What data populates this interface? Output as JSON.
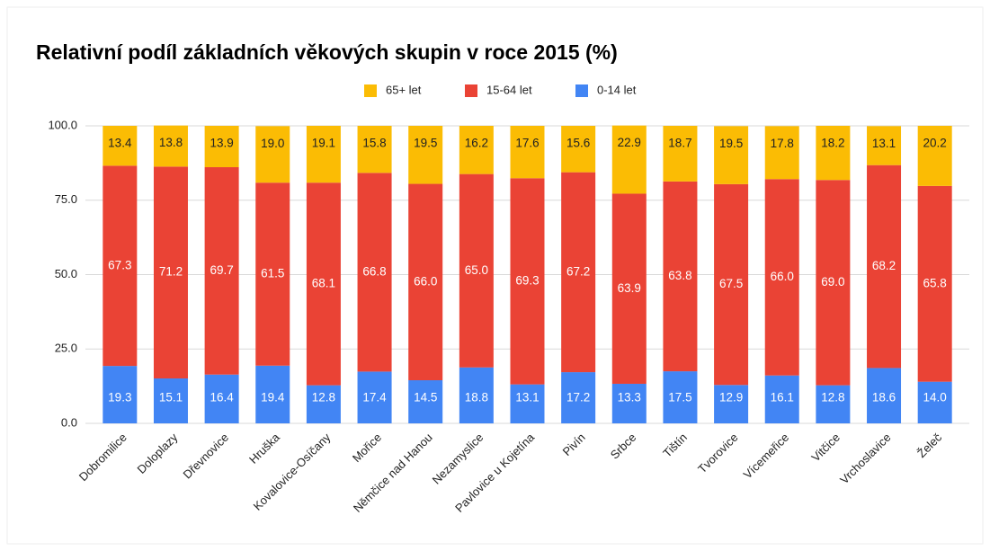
{
  "chart_data": {
    "type": "stacked_bar",
    "title": "Relativní podíl základních věkových skupin v roce 2015 (%)",
    "categories": [
      "Dobromilice",
      "Doloplazy",
      "Dřevnovice",
      "Hruška",
      "Kovalovice-Osíčany",
      "Mořice",
      "Němčice nad Hanou",
      "Nezamyslice",
      "Pavlovice u Kojetína",
      "Pivín",
      "Srbce",
      "Tištín",
      "Tvorovice",
      "Vícemeřice",
      "Vitčice",
      "Vrchoslavice",
      "Želeč"
    ],
    "series": [
      {
        "name": "0-14 let",
        "color": "#4285f4",
        "values": [
          19.3,
          15.1,
          16.4,
          19.4,
          12.8,
          17.4,
          14.5,
          18.8,
          13.1,
          17.2,
          13.3,
          17.5,
          12.9,
          16.1,
          12.8,
          18.6,
          14.0
        ],
        "value_labels": [
          "19.3",
          "15.1",
          "16.4",
          "19.4",
          "12.8",
          "17.4",
          "14.5",
          "18.8",
          "13.1",
          "17.2",
          "13.3",
          "17.5",
          "12.9",
          "16.1",
          "12.8",
          "18.6",
          "14.0"
        ]
      },
      {
        "name": "15-64 let",
        "color": "#ea4335",
        "values": [
          67.3,
          71.2,
          69.7,
          61.5,
          68.1,
          66.8,
          66.0,
          65.0,
          69.3,
          67.2,
          63.9,
          63.8,
          67.5,
          66.0,
          69.0,
          68.2,
          65.8
        ],
        "value_labels": [
          "67.3",
          "71.2",
          "69.7",
          "61.5",
          "68.1",
          "66.8",
          "66.0",
          "65.0",
          "69.3",
          "67.2",
          "63.9",
          "63.8",
          "67.5",
          "66.0",
          "69.0",
          "68.2",
          "65.8"
        ]
      },
      {
        "name": "65+ let",
        "color": "#fbbc04",
        "values": [
          13.4,
          13.8,
          13.9,
          19.0,
          19.1,
          15.8,
          19.5,
          16.2,
          17.6,
          15.6,
          22.9,
          18.7,
          19.5,
          17.8,
          18.2,
          13.1,
          20.2
        ],
        "value_labels": [
          "13.4",
          "13.8",
          "13.9",
          "19.0",
          "19.1",
          "15.8",
          "19.5",
          "16.2",
          "17.6",
          "15.6",
          "22.9",
          "18.7",
          "19.5",
          "17.8",
          "18.2",
          "13.1",
          "20.2"
        ]
      }
    ],
    "ylim": [
      0,
      100
    ],
    "yticks": [
      {
        "value": 0,
        "label": "0.0"
      },
      {
        "value": 25,
        "label": "25.0"
      },
      {
        "value": 50,
        "label": "50.0"
      },
      {
        "value": 75,
        "label": "75.0"
      },
      {
        "value": 100,
        "label": "100.0"
      }
    ],
    "grid": true,
    "legend": "top"
  }
}
